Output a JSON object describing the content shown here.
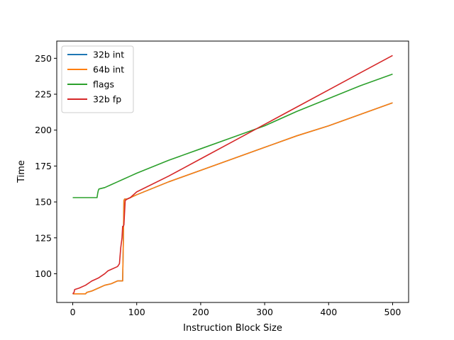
{
  "chart_data": {
    "type": "line",
    "xlabel": "Instruction Block Size",
    "ylabel": "Time",
    "xlim": [
      -25,
      525
    ],
    "ylim": [
      80,
      262
    ],
    "xticks": [
      0,
      100,
      200,
      300,
      400,
      500
    ],
    "yticks": [
      100,
      125,
      150,
      175,
      200,
      225,
      250
    ],
    "grid": false,
    "legend": "top-left",
    "series": [
      {
        "name": "32b int",
        "color": "#1f77b4",
        "x": [
          0,
          10,
          20,
          22,
          30,
          40,
          50,
          60,
          70,
          78,
          79,
          80,
          81,
          85,
          90,
          100,
          150,
          200,
          250,
          300,
          350,
          400,
          450,
          500
        ],
        "y": [
          86,
          86,
          86,
          87,
          88,
          90,
          92,
          93,
          95,
          95,
          120,
          151,
          152,
          152,
          153,
          155,
          164,
          172,
          180,
          188,
          196,
          203,
          211,
          219
        ]
      },
      {
        "name": "64b int",
        "color": "#ff7f0e",
        "x": [
          0,
          10,
          20,
          22,
          30,
          40,
          50,
          60,
          70,
          78,
          79,
          80,
          81,
          85,
          90,
          100,
          150,
          200,
          250,
          300,
          350,
          400,
          450,
          500
        ],
        "y": [
          86,
          86,
          86,
          87,
          88,
          90,
          92,
          93,
          95,
          95,
          120,
          151,
          152,
          152,
          153,
          155,
          164,
          172,
          180,
          188,
          196,
          203,
          211,
          219
        ]
      },
      {
        "name": "flags",
        "color": "#2ca02c",
        "x": [
          0,
          10,
          20,
          30,
          38,
          39,
          40,
          41,
          50,
          60,
          70,
          80,
          90,
          100,
          150,
          200,
          250,
          300,
          350,
          400,
          450,
          500
        ],
        "y": [
          153,
          153,
          153,
          153,
          153,
          156,
          158,
          159,
          160,
          162,
          164,
          166,
          168,
          170,
          179,
          187,
          195,
          203,
          213,
          222,
          231,
          239
        ]
      },
      {
        "name": "32b fp",
        "color": "#d62728",
        "x": [
          0,
          2,
          3,
          10,
          20,
          30,
          40,
          50,
          55,
          60,
          70,
          73,
          75,
          77,
          78,
          79,
          80,
          82,
          85,
          90,
          100,
          150,
          200,
          250,
          300,
          350,
          400,
          450,
          500
        ],
        "y": [
          86,
          87,
          89,
          90,
          92,
          95,
          97,
          100,
          102,
          103,
          105,
          107,
          118,
          125,
          133,
          133,
          134,
          151,
          152,
          153,
          157,
          168,
          180,
          192,
          204,
          216,
          228,
          240,
          252
        ]
      }
    ]
  }
}
